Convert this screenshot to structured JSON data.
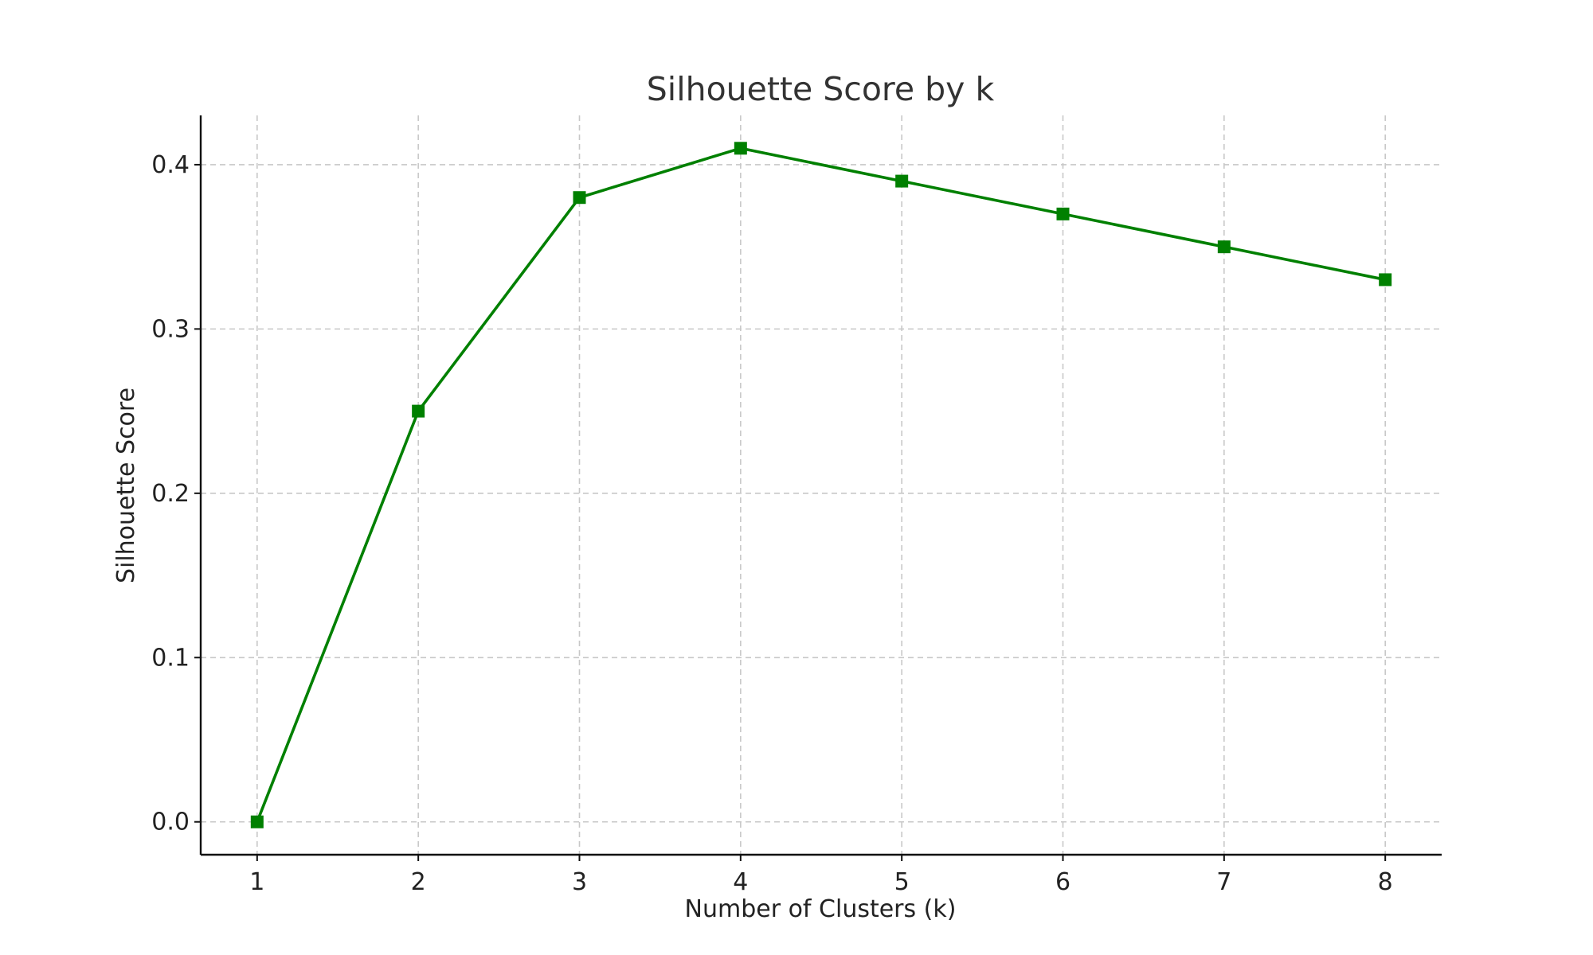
{
  "chart_data": {
    "type": "line",
    "title": "Silhouette Score by k",
    "xlabel": "Number of Clusters (k)",
    "ylabel": "Silhouette Score",
    "x": [
      1,
      2,
      3,
      4,
      5,
      6,
      7,
      8
    ],
    "series": [
      {
        "values": [
          0.0,
          0.25,
          0.38,
          0.41,
          0.39,
          0.37,
          0.35,
          0.33
        ],
        "color": "#008000",
        "marker": "square"
      }
    ],
    "xticks": [
      "1",
      "2",
      "3",
      "4",
      "5",
      "6",
      "7",
      "8"
    ],
    "yticks": [
      "0.0",
      "0.1",
      "0.2",
      "0.3",
      "0.4"
    ],
    "xlim": [
      0.65,
      8.35
    ],
    "ylim": [
      -0.02,
      0.43
    ],
    "grid": true,
    "legend": "none"
  }
}
